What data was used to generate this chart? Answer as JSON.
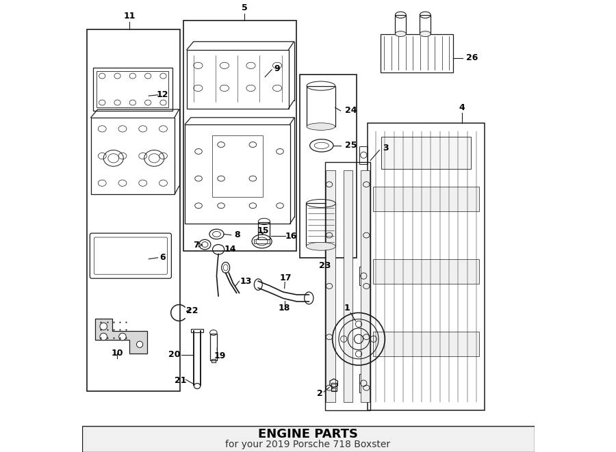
{
  "title": "ENGINE PARTS",
  "subtitle": "for your 2019 Porsche 718 Boxster",
  "background_color": "#ffffff",
  "line_color": "#1a1a1a",
  "label_color": "#000000",
  "title_fontsize": 13,
  "subtitle_fontsize": 10,
  "fig_width": 9.0,
  "fig_height": 6.61,
  "dpi": 100
}
